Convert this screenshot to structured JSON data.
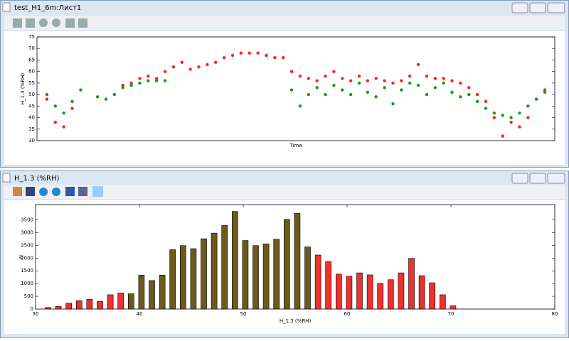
{
  "windows": [
    "test_H1_6m:Лист1",
    "H_1.3 (%RH)"
  ],
  "chart_data": [
    {
      "type": "scatter",
      "xlabel": "Time",
      "ylabel": "H_1.3 (%RH)",
      "ylim": [
        30,
        75
      ],
      "yticks": [
        30,
        35,
        40,
        45,
        50,
        55,
        60,
        65,
        70,
        75
      ],
      "series": [
        {
          "color": "#ff2020",
          "values": [
            48,
            38,
            36,
            44,
            null,
            null,
            null,
            null,
            null,
            54,
            55,
            57,
            58,
            57,
            60,
            62,
            64,
            61,
            62,
            63,
            64,
            66,
            67,
            68,
            68,
            68,
            67,
            66,
            66,
            60,
            58,
            57,
            56,
            58,
            60,
            57,
            56,
            58,
            56,
            57,
            56,
            55,
            56,
            58,
            63,
            58,
            57,
            57,
            56,
            55,
            53,
            50,
            47,
            40,
            32,
            38,
            36,
            40,
            48,
            52
          ]
        },
        {
          "color": "#10a010",
          "values": [
            50,
            45,
            42,
            47,
            52,
            null,
            49,
            48,
            50,
            53,
            54,
            55,
            56,
            56,
            56,
            null,
            null,
            null,
            null,
            null,
            null,
            null,
            null,
            null,
            null,
            null,
            null,
            null,
            null,
            52,
            45,
            50,
            53,
            50,
            54,
            52,
            50,
            55,
            51,
            49,
            53,
            46,
            52,
            55,
            54,
            50,
            53,
            55,
            51,
            49,
            50,
            47,
            44,
            42,
            41,
            40,
            42,
            45,
            48,
            51
          ]
        }
      ]
    },
    {
      "type": "histogram",
      "xlabel": "H_1.3 (%RH)",
      "ylabel": "N",
      "xlim": [
        30,
        80
      ],
      "xticks": [
        30,
        40,
        50,
        60,
        70,
        80
      ],
      "ylim": [
        0,
        4100
      ],
      "yticks": [
        0,
        500,
        1000,
        1500,
        2000,
        2500,
        3000,
        3500
      ],
      "bins": [
        30.7,
        31.7,
        32.7,
        33.7,
        34.7,
        35.7,
        36.7,
        37.7,
        38.7,
        39.7,
        40.7,
        41.7,
        42.7,
        43.7,
        44.7,
        45.7,
        46.7,
        47.7,
        48.7,
        49.7,
        50.7,
        51.7,
        52.7,
        53.7,
        54.7,
        55.7,
        56.7,
        57.7,
        58.7,
        59.7,
        60.7,
        61.7,
        62.7,
        63.7,
        64.7,
        65.7,
        66.7,
        67.7,
        68.7,
        69.7,
        70.7
      ],
      "values": [
        60,
        100,
        230,
        330,
        380,
        300,
        560,
        630,
        600,
        1330,
        1120,
        1330,
        2330,
        2490,
        2370,
        2760,
        2980,
        3280,
        3830,
        2690,
        2490,
        2560,
        2740,
        3520,
        3760,
        2440,
        2120,
        1860,
        1370,
        1290,
        1420,
        1340,
        1010,
        1150,
        1420,
        1990,
        1310,
        1030,
        560,
        130
      ],
      "colors": [
        "#ee3030",
        "#ee3030",
        "#ee3030",
        "#ee3030",
        "#ee3030",
        "#ee3030",
        "#ee3030",
        "#ee3030",
        "#6b5a1e",
        "#6b5a1e",
        "#6b5a1e",
        "#6b5a1e",
        "#6b5a1e",
        "#6b5a1e",
        "#6b5a1e",
        "#6b5a1e",
        "#6b5a1e",
        "#6b5a1e",
        "#6b5a1e",
        "#6b5a1e",
        "#6b5a1e",
        "#6b5a1e",
        "#6b5a1e",
        "#6b5a1e",
        "#6b5a1e",
        "#6b5a1e",
        "#ee3030",
        "#ee3030",
        "#ee3030",
        "#ee3030",
        "#ee3030",
        "#ee3030",
        "#ee3030",
        "#ee3030",
        "#ee3030",
        "#ee3030",
        "#ee3030",
        "#ee3030",
        "#ee3030",
        "#ee3030"
      ]
    }
  ]
}
